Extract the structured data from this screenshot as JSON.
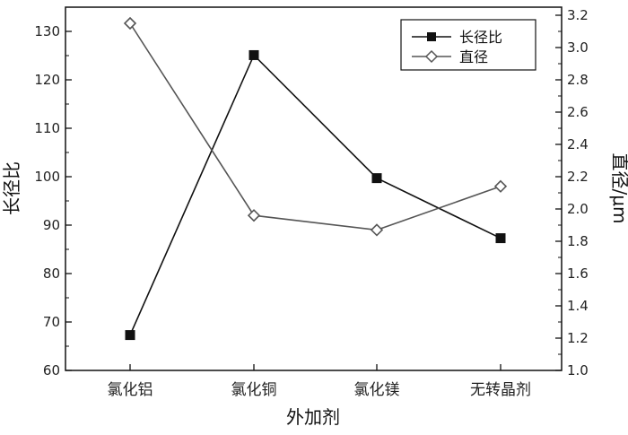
{
  "chart_data": {
    "type": "line",
    "categories": [
      "氯化铝",
      "氯化铜",
      "氯化镁",
      "无转晶剂"
    ],
    "xlabel": "外加剂",
    "ylabel_left": "长径比",
    "ylabel_right": "直径/μm",
    "ylim_left": [
      60,
      135
    ],
    "ylim_right": [
      1.0,
      3.25
    ],
    "yticks_left": [
      "60",
      "70",
      "80",
      "90",
      "100",
      "110",
      "120",
      "130"
    ],
    "yticks_right": [
      "1.0",
      "1.2",
      "1.4",
      "1.6",
      "1.8",
      "2.0",
      "2.2",
      "2.4",
      "2.6",
      "2.8",
      "3.0",
      "3.2"
    ],
    "grid": false,
    "legend": "top-right",
    "series": [
      {
        "name": "长径比",
        "axis": "left",
        "marker": "filled-square",
        "color": "#111111",
        "values": [
          67.3,
          125.1,
          99.7,
          87.3
        ]
      },
      {
        "name": "直径",
        "axis": "right",
        "marker": "open-diamond",
        "color": "#555555",
        "values": [
          3.15,
          1.96,
          1.87,
          2.14
        ]
      }
    ]
  }
}
